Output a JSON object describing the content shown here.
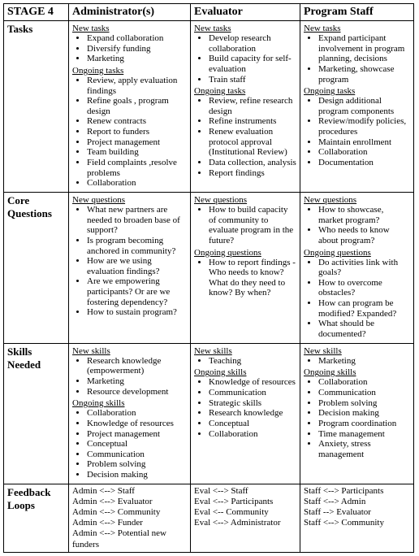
{
  "header": {
    "stage": "STAGE 4",
    "cols": [
      "Administrator(s)",
      "Evaluator",
      "Program Staff"
    ]
  },
  "rows": [
    {
      "label": "Tasks",
      "cells": [
        {
          "groups": [
            {
              "title": "New tasks",
              "items": [
                "Expand collaboration",
                "Diversify funding",
                "Marketing"
              ]
            },
            {
              "title": "Ongoing tasks",
              "items": [
                "Review, apply evaluation findings",
                "Refine goals , program design",
                "Renew contracts",
                "Report to funders",
                "Project management",
                "Team building",
                "Field complaints ,resolve problems",
                "Collaboration"
              ]
            }
          ]
        },
        {
          "groups": [
            {
              "title": "New tasks",
              "items": [
                "Develop research collaboration",
                "Build capacity for self-evaluation",
                "Train staff"
              ]
            },
            {
              "title": "Ongoing tasks",
              "items": [
                "Review, refine research design",
                "Refine instruments",
                "Renew evaluation protocol approval (Institutional Review)",
                "Data collection, analysis",
                "Report findings"
              ]
            }
          ]
        },
        {
          "groups": [
            {
              "title": "New tasks",
              "items": [
                "Expand participant involvement in program planning, decisions",
                "Marketing, showcase program"
              ]
            },
            {
              "title": "Ongoing tasks",
              "items": [
                "Design additional program components",
                "Review/modify policies, procedures",
                "Maintain enrollment",
                "Collaboration",
                "Documentation"
              ]
            }
          ]
        }
      ]
    },
    {
      "label": "Core Questions",
      "cells": [
        {
          "groups": [
            {
              "title": "New questions",
              "items": [
                "What new partners are needed to broaden base of support?",
                "Is program becoming anchored in community?",
                "How are we using evaluation findings?",
                "Are we empowering participants? Or are we fostering dependency?",
                "How to sustain program?"
              ]
            }
          ]
        },
        {
          "groups": [
            {
              "title": "New questions",
              "items": [
                "How to build capacity of community to evaluate program in the future?"
              ]
            },
            {
              "title": "Ongoing questions",
              "items": [
                "How to report findings - Who needs to know? What do they need to know? By when?"
              ]
            }
          ]
        },
        {
          "groups": [
            {
              "title": "New questions",
              "items": [
                "How to showcase, market program?",
                "Who needs to know about program?"
              ]
            },
            {
              "title": "Ongoing questions",
              "items": [
                "Do activities link with goals?",
                "How to overcome obstacles?",
                "How can program be modified? Expanded?",
                "What should be documented?"
              ]
            }
          ]
        }
      ]
    },
    {
      "label": "Skills Needed",
      "cells": [
        {
          "groups": [
            {
              "title": "New skills",
              "items": [
                "Research knowledge (empowerment)",
                "Marketing",
                "Resource development"
              ]
            },
            {
              "title": "Ongoing skills",
              "items": [
                "Collaboration",
                "Knowledge of resources",
                "Project management",
                "Conceptual",
                "Communication",
                "Problem solving",
                "Decision making"
              ]
            }
          ]
        },
        {
          "groups": [
            {
              "title": "New skills",
              "items": [
                "Teaching"
              ]
            },
            {
              "title": "Ongoing skills",
              "items": [
                "Knowledge of resources",
                "Communication",
                "Strategic skills",
                "Research knowledge",
                "Conceptual",
                "Collaboration"
              ]
            }
          ]
        },
        {
          "groups": [
            {
              "title": "New skills",
              "items": [
                "Marketing"
              ]
            },
            {
              "title": "Ongoing skills",
              "items": [
                "Collaboration",
                "Communication",
                "Problem solving",
                "Decision making",
                "Program coordination",
                "Time management",
                "Anxiety, stress management"
              ]
            }
          ]
        }
      ]
    },
    {
      "label": "Feedback Loops",
      "cells": [
        {
          "lines": [
            "Admin <--> Staff",
            "Admin <--> Evaluator",
            "Admin <--> Community",
            "Admin <--> Funder",
            "Admin <--> Potential new funders"
          ]
        },
        {
          "lines": [
            "Eval <--> Staff",
            "Eval <--> Participants",
            "Eval <-- Community",
            "Eval <--> Administrator"
          ]
        },
        {
          "lines": [
            "Staff <--> Participants",
            "Staff <--> Admin",
            "Staff --> Evaluator",
            "Staff <--> Community"
          ]
        }
      ]
    }
  ]
}
